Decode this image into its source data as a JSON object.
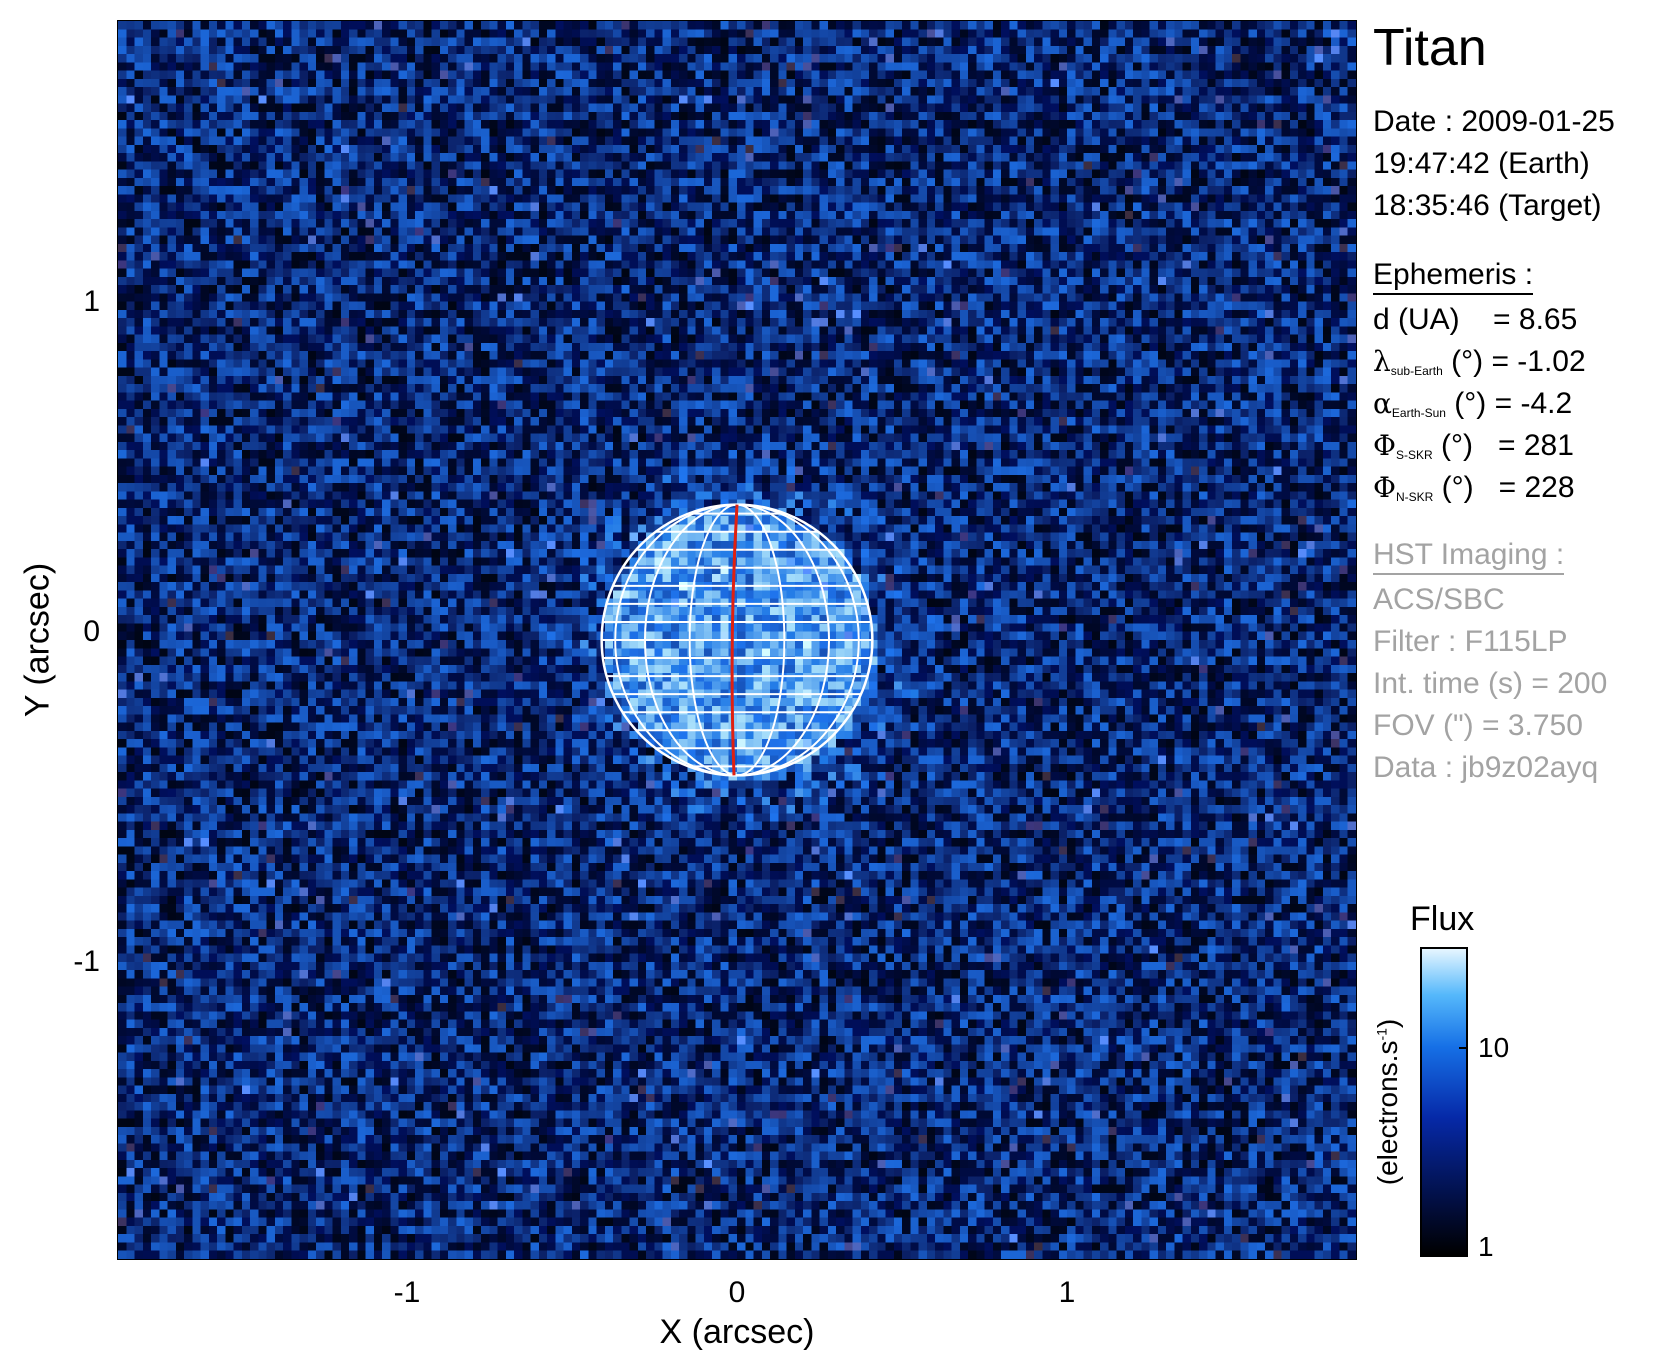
{
  "panel_title": "Titan",
  "date_lines": [
    "Date : 2009-01-25",
    "19:47:42 (Earth)",
    "18:35:46 (Target)"
  ],
  "ephemeris": {
    "header": "Ephemeris :",
    "d_label": "d (UA)",
    "d_value": "= 8.65",
    "lambda_symbol": "λ",
    "lambda_sub": "sub-Earth",
    "lambda_rest": "(°) = -1.02",
    "alpha_symbol": "α",
    "alpha_sub": "Earth-Sun",
    "alpha_rest": "(°) = -4.2",
    "phi_symbol": "Φ",
    "phi_s_sub": "S-SKR",
    "phi_s_rest": "(°)   = 281",
    "phi_n_sub": "N-SKR",
    "phi_n_rest": "(°)   = 228"
  },
  "hst": {
    "header": "HST Imaging :",
    "instrument": "ACS/SBC",
    "filter": "Filter : F115LP",
    "int_time": "Int. time (s) = 200",
    "fov": "FOV (\") = 3.750",
    "data": "Data : jb9z02ayq"
  },
  "colorbar": {
    "title": "Flux",
    "unit_main": "(electrons.s",
    "unit_sup": "-1",
    "unit_close": ")",
    "ticks": [
      "10",
      "1"
    ],
    "scale": "log",
    "colors": [
      "#000000",
      "#020f44",
      "#0629a8",
      "#1670e6",
      "#55b8fb",
      "#e6f6ff"
    ]
  },
  "chart_data": {
    "type": "heatmap",
    "title": "Titan",
    "xlabel": "X (arcsec)",
    "ylabel": "Y (arcsec)",
    "xlim": [
      -1.875,
      1.875
    ],
    "ylim": [
      -1.875,
      1.875
    ],
    "x_ticks": [
      "-1",
      "0",
      "1"
    ],
    "y_ticks": [
      "1",
      "0",
      "-1"
    ],
    "body": {
      "center": [
        0,
        0
      ],
      "radius_arcsec": 0.41,
      "grid_color": "#ffffff",
      "meridian_color": "#e02010"
    }
  }
}
